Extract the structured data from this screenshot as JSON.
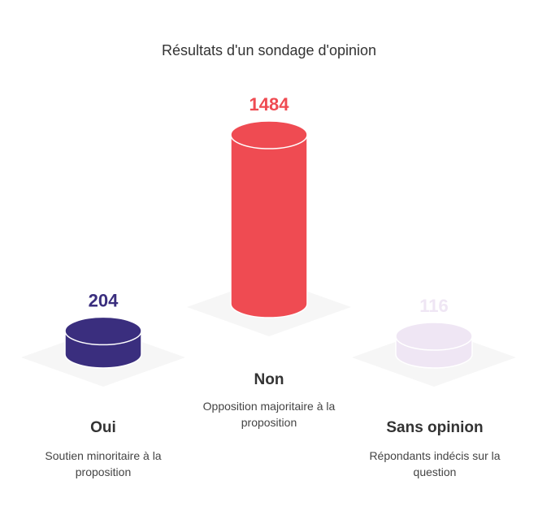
{
  "chart_data": {
    "type": "bar",
    "title": "Résultats d'un sondage d'opinion",
    "categories": [
      "Oui",
      "Non",
      "Sans opinion"
    ],
    "values": [
      204,
      1484,
      116
    ],
    "descriptions": [
      "Soutien minoritaire à la proposition",
      "Opposition majoritaire à la proposition",
      "Répondants indécis sur la question"
    ],
    "colors": [
      "#3a2e7e",
      "#ef4b52",
      "#efe6f4"
    ],
    "value_label_colors": [
      "#3a2e7e",
      "#ef4b52",
      "#efe6f4"
    ],
    "xlabel": "",
    "ylabel": "",
    "grid": false,
    "legend": "none"
  }
}
